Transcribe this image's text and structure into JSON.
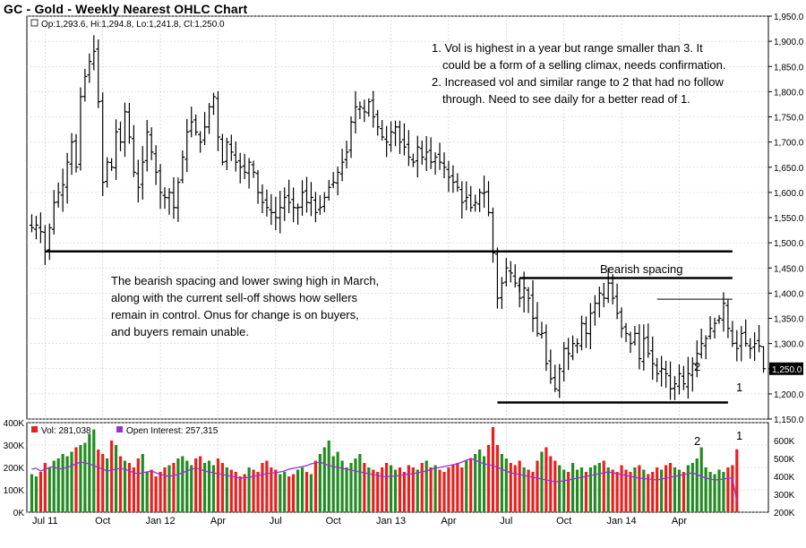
{
  "title": "GC - Gold - Weekly Nearest OHLC Chart",
  "price_legend": "Op:1,293.6, Hi:1,294.8, Lo:1,241.8, Cl:1,250.0",
  "last_price_tag": "1,250.0",
  "volume_legend": {
    "vol": "Vol: 281,038",
    "oi": "Open Interest: 257,315"
  },
  "annotations": {
    "notes_top_right": [
      "1. Vol is highest in a year but range smaller than 3.  It",
      "could be a form of a selling climax, needs confirmation.",
      "2. Increased vol and similar range to 2 that had no follow",
      "through.  Need to see daily for a better read of 1."
    ],
    "notes_left": [
      "The bearish spacing and lower swing high in March,",
      "along with the current sell-off shows how sellers",
      "remain in control.  Onus for change is on buyers,",
      "and buyers remain unable."
    ],
    "bearish_spacing_label": "Bearish spacing",
    "marker_2_price": "2",
    "marker_1_price": "1",
    "marker_2_volume": "2",
    "marker_1_volume": "1"
  },
  "colors": {
    "up_volume": "#228b22",
    "down_volume": "#e8201e",
    "open_interest_line": "#9b30d9",
    "price_bars": "#000000",
    "background": "#ffffff",
    "grid": "#c8c8c8"
  },
  "chart_data": [
    {
      "type": "ohlc",
      "xlabel": "",
      "ylabel": "",
      "x_tick_labels": [
        "Jul 11",
        "Oct",
        "Jan 12",
        "Apr",
        "Jul",
        "Oct",
        "Jan 13",
        "Apr",
        "Jul",
        "Oct",
        "Jan 14",
        "Apr"
      ],
      "y_ticks": [
        1150,
        1200,
        1250,
        1300,
        1350,
        1400,
        1450,
        1500,
        1550,
        1600,
        1650,
        1700,
        1750,
        1800,
        1850,
        1900,
        1950
      ],
      "ylim": [
        1150,
        1950
      ],
      "grid": true,
      "horizontal_lines": [
        {
          "label": "support_2011",
          "value": 1483,
          "from_week": 3,
          "to_week": 158
        },
        {
          "label": "bearish_spacing_top",
          "value": 1430,
          "from_week": 110,
          "to_week": 158
        },
        {
          "label": "march_swing_high",
          "value": 1388,
          "from_week": 141,
          "to_week": 158
        },
        {
          "label": "bottom_support",
          "value": 1183,
          "from_week": 105,
          "to_week": 157
        }
      ],
      "weekly_close": [
        1530,
        1535,
        1522,
        1484,
        1530,
        1580,
        1600,
        1615,
        1660,
        1700,
        1650,
        1790,
        1830,
        1860,
        1880,
        1780,
        1620,
        1660,
        1650,
        1720,
        1700,
        1760,
        1710,
        1640,
        1610,
        1660,
        1720,
        1680,
        1640,
        1600,
        1590,
        1600,
        1570,
        1620,
        1670,
        1720,
        1740,
        1720,
        1700,
        1730,
        1770,
        1790,
        1710,
        1660,
        1700,
        1680,
        1660,
        1650,
        1640,
        1660,
        1640,
        1600,
        1580,
        1570,
        1560,
        1550,
        1570,
        1590,
        1580,
        1570,
        1570,
        1600,
        1580,
        1590,
        1560,
        1570,
        1590,
        1610,
        1620,
        1640,
        1660,
        1680,
        1740,
        1770,
        1770,
        1760,
        1780,
        1750,
        1730,
        1710,
        1700,
        1720,
        1730,
        1700,
        1690,
        1670,
        1660,
        1690,
        1670,
        1680,
        1660,
        1670,
        1660,
        1650,
        1630,
        1620,
        1610,
        1580,
        1590,
        1570,
        1580,
        1600,
        1600,
        1560,
        1480,
        1390,
        1420,
        1450,
        1440,
        1420,
        1390,
        1410,
        1390,
        1350,
        1320,
        1320,
        1260,
        1230,
        1210,
        1250,
        1290,
        1280,
        1300,
        1300,
        1340,
        1320,
        1360,
        1380,
        1400,
        1390,
        1420,
        1390,
        1360,
        1330,
        1320,
        1300,
        1320,
        1270,
        1310,
        1280,
        1260,
        1240,
        1250,
        1240,
        1210,
        1220,
        1240,
        1220,
        1240,
        1260,
        1280,
        1300,
        1310,
        1330,
        1340,
        1350,
        1380,
        1330,
        1300,
        1290,
        1320,
        1300,
        1290,
        1300,
        1295,
        1250
      ],
      "last_bar": {
        "open": 1293.6,
        "high": 1294.8,
        "low": 1241.8,
        "close": 1250.0
      }
    },
    {
      "type": "bar",
      "series": [
        {
          "name": "Vol",
          "last_value": 281038
        },
        {
          "name": "Open Interest",
          "last_value": 257315
        }
      ],
      "volume_y_ticks": [
        "0K",
        "100K",
        "200K",
        "300K",
        "400K"
      ],
      "open_interest_y_ticks": [
        "200K",
        "300K",
        "400K",
        "500K",
        "600K"
      ],
      "volume_ylim": [
        0,
        400000
      ],
      "open_interest_ylim": [
        200000,
        700000
      ],
      "volume": [
        170,
        160,
        180,
        220,
        200,
        230,
        240,
        260,
        250,
        270,
        290,
        300,
        310,
        350,
        370,
        280,
        260,
        240,
        320,
        300,
        250,
        230,
        220,
        200,
        240,
        260,
        180,
        190,
        160,
        180,
        200,
        210,
        220,
        240,
        250,
        230,
        210,
        240,
        250,
        220,
        230,
        210,
        240,
        220,
        200,
        190,
        180,
        160,
        170,
        200,
        190,
        180,
        220,
        230,
        200,
        190,
        170,
        180,
        160,
        170,
        190,
        200,
        180,
        170,
        230,
        260,
        290,
        320,
        250,
        270,
        230,
        200,
        220,
        240,
        260,
        220,
        200,
        190,
        180,
        200,
        220,
        210,
        190,
        200,
        180,
        210,
        200,
        190,
        220,
        230,
        200,
        210,
        190,
        180,
        200,
        210,
        220,
        200,
        230,
        240,
        260,
        280,
        250,
        300,
        380,
        300,
        260,
        240,
        220,
        210,
        230,
        200,
        190,
        180,
        230,
        270,
        290,
        250,
        230,
        210,
        190,
        180,
        220,
        190,
        200,
        180,
        200,
        210,
        220,
        230,
        200,
        190,
        180,
        210,
        190,
        180,
        200,
        210,
        190,
        170,
        180,
        200,
        190,
        210,
        220,
        200,
        190,
        180,
        210,
        220,
        240,
        290,
        200,
        180,
        170,
        190,
        180,
        200,
        210,
        281
      ],
      "open_interest": [
        440,
        445,
        430,
        440,
        450,
        455,
        440,
        445,
        450,
        460,
        470,
        480,
        475,
        470,
        460,
        450,
        440,
        430,
        435,
        440,
        445,
        440,
        430,
        420,
        415,
        420,
        425,
        430,
        420,
        410,
        405,
        400,
        405,
        410,
        420,
        430,
        440,
        445,
        440,
        430,
        425,
        420,
        415,
        410,
        405,
        400,
        395,
        390,
        392,
        395,
        400,
        405,
        410,
        415,
        418,
        420,
        425,
        430,
        440,
        445,
        450,
        455,
        460,
        470,
        475,
        480,
        470,
        460,
        455,
        450,
        445,
        440,
        435,
        430,
        425,
        420,
        415,
        410,
        405,
        400,
        398,
        400,
        402,
        405,
        410,
        412,
        415,
        420,
        425,
        430,
        440,
        445,
        450,
        455,
        460,
        465,
        470,
        480,
        490,
        500,
        490,
        480,
        470,
        465,
        460,
        450,
        440,
        430,
        420,
        415,
        410,
        405,
        400,
        395,
        390,
        385,
        380,
        375,
        370,
        372,
        375,
        380,
        385,
        390,
        395,
        400,
        405,
        410,
        415,
        420,
        425,
        420,
        415,
        410,
        405,
        400,
        395,
        390,
        388,
        385,
        383,
        380,
        385,
        390,
        395,
        400,
        405,
        410,
        415,
        420,
        410,
        400,
        390,
        385,
        380,
        382,
        385,
        390,
        392,
        257
      ]
    }
  ]
}
